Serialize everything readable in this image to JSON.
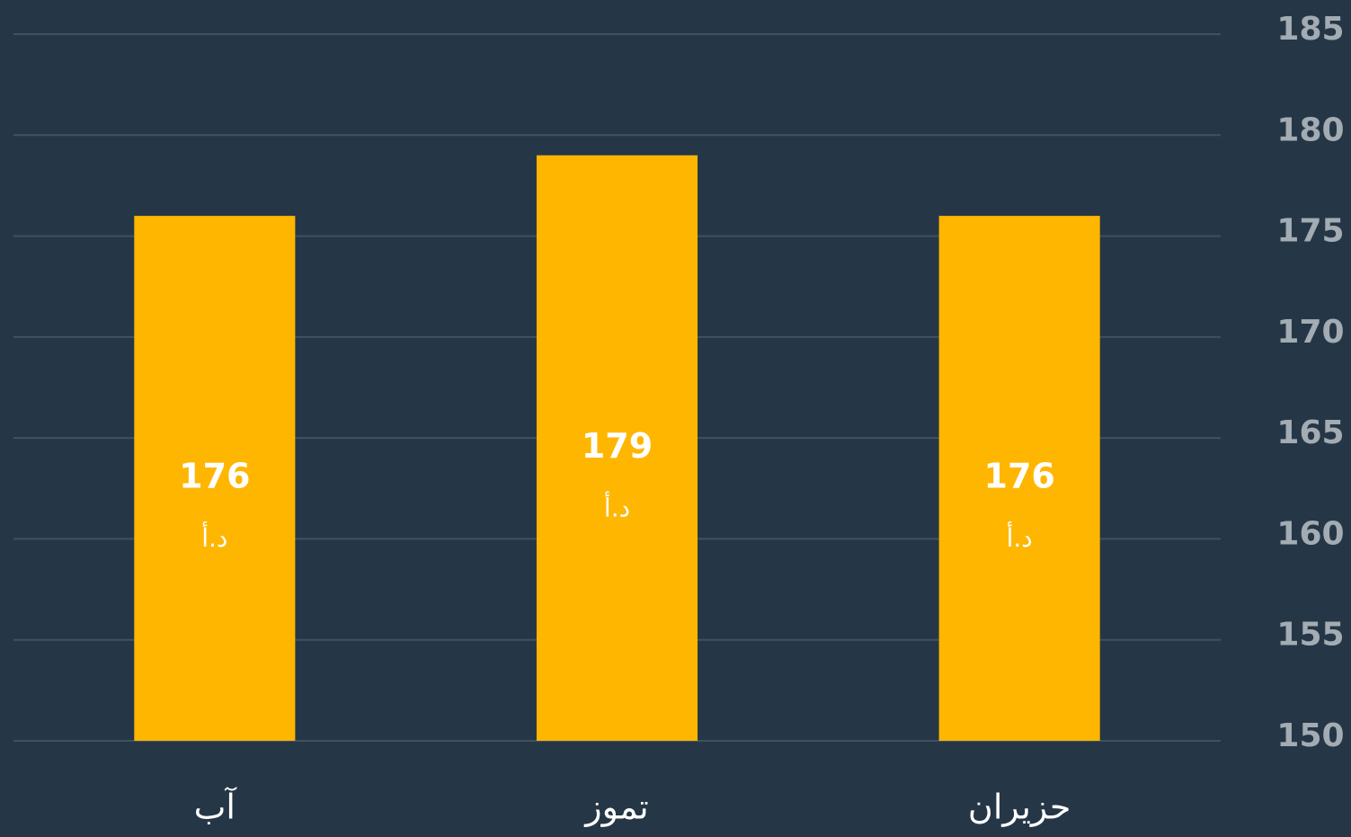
{
  "chart_data": {
    "type": "bar",
    "categories": [
      "آب",
      "تموز",
      "حزيران"
    ],
    "values": [
      176,
      179,
      176
    ],
    "unit": "د.أ",
    "color": "#ffb600",
    "ylim": [
      150,
      185
    ],
    "yticks": [
      150,
      155,
      160,
      165,
      170,
      175,
      180,
      185
    ],
    "grid": true
  }
}
